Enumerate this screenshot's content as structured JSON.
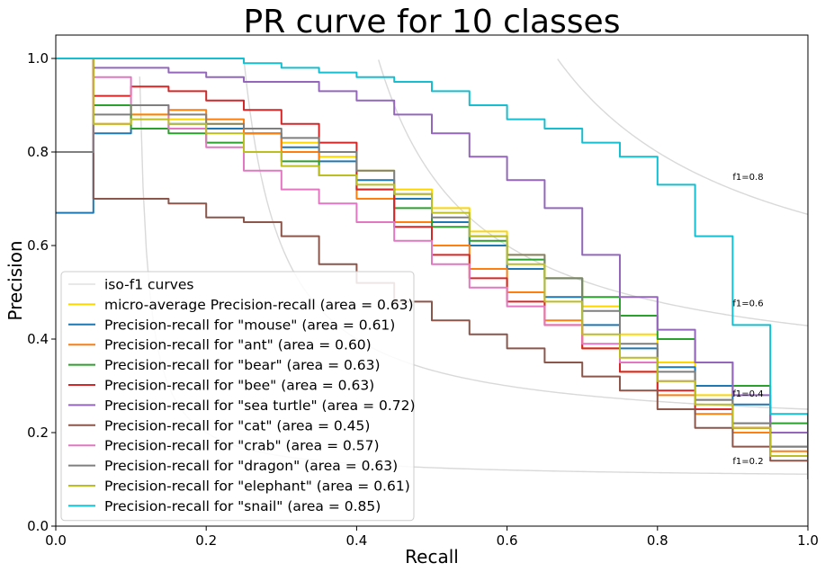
{
  "chart_data": {
    "type": "line",
    "title": "PR curve for 10 classes",
    "xlabel": "Recall",
    "ylabel": "Precision",
    "xlim": [
      0.0,
      1.0
    ],
    "ylim": [
      0.0,
      1.05
    ],
    "xticks": [
      "0.0",
      "0.2",
      "0.4",
      "0.6",
      "0.8",
      "1.0"
    ],
    "yticks": [
      "0.0",
      "0.2",
      "0.4",
      "0.6",
      "0.8",
      "1.0"
    ],
    "grid": false,
    "legend_position": "lower-left",
    "iso_f1": {
      "legend_label": "iso-f1 curves",
      "color": "#d9d9d9",
      "values": [
        0.2,
        0.4,
        0.6,
        0.8
      ],
      "labels": [
        "f1=0.2",
        "f1=0.4",
        "f1=0.6",
        "f1=0.8"
      ]
    },
    "series": [
      {
        "name": "micro-average Precision-recall (area = 0.63)",
        "color": "#ffd700",
        "x": [
          0.0,
          0.05,
          0.1,
          0.15,
          0.2,
          0.25,
          0.3,
          0.35,
          0.4,
          0.45,
          0.5,
          0.55,
          0.6,
          0.65,
          0.7,
          0.75,
          0.8,
          0.85,
          0.9,
          0.95,
          1.0
        ],
        "y": [
          1.0,
          0.9,
          0.88,
          0.87,
          0.86,
          0.84,
          0.82,
          0.79,
          0.76,
          0.72,
          0.68,
          0.63,
          0.58,
          0.53,
          0.47,
          0.41,
          0.35,
          0.28,
          0.21,
          0.15,
          0.1
        ]
      },
      {
        "name": "Precision-recall for \"mouse\" (area = 0.61)",
        "color": "#1f77b4",
        "x": [
          0.0,
          0.05,
          0.1,
          0.15,
          0.2,
          0.25,
          0.3,
          0.35,
          0.4,
          0.45,
          0.5,
          0.55,
          0.6,
          0.65,
          0.7,
          0.75,
          0.8,
          0.85,
          0.9,
          0.95,
          1.0
        ],
        "y": [
          0.67,
          0.84,
          0.85,
          0.86,
          0.85,
          0.84,
          0.81,
          0.78,
          0.74,
          0.7,
          0.65,
          0.6,
          0.55,
          0.49,
          0.43,
          0.38,
          0.34,
          0.3,
          0.26,
          0.2,
          0.1
        ]
      },
      {
        "name": "Precision-recall for \"ant\" (area = 0.60)",
        "color": "#ff7f0e",
        "x": [
          0.0,
          0.05,
          0.1,
          0.15,
          0.2,
          0.25,
          0.3,
          0.35,
          0.4,
          0.45,
          0.5,
          0.55,
          0.6,
          0.65,
          0.7,
          0.75,
          0.8,
          0.85,
          0.9,
          0.95,
          1.0
        ],
        "y": [
          1.0,
          0.86,
          0.88,
          0.89,
          0.87,
          0.84,
          0.8,
          0.75,
          0.7,
          0.65,
          0.6,
          0.55,
          0.5,
          0.44,
          0.38,
          0.33,
          0.28,
          0.24,
          0.2,
          0.16,
          0.1
        ]
      },
      {
        "name": "Precision-recall for \"bear\" (area = 0.63)",
        "color": "#2ca02c",
        "x": [
          0.0,
          0.05,
          0.1,
          0.15,
          0.2,
          0.25,
          0.3,
          0.35,
          0.4,
          0.45,
          0.5,
          0.55,
          0.6,
          0.65,
          0.7,
          0.75,
          0.8,
          0.85,
          0.9,
          0.95,
          1.0
        ],
        "y": [
          0.8,
          0.9,
          0.85,
          0.84,
          0.82,
          0.8,
          0.78,
          0.75,
          0.72,
          0.68,
          0.64,
          0.61,
          0.57,
          0.53,
          0.49,
          0.45,
          0.4,
          0.35,
          0.3,
          0.22,
          0.1
        ]
      },
      {
        "name": "Precision-recall for \"bee\" (area = 0.63)",
        "color": "#d62728",
        "x": [
          0.0,
          0.05,
          0.1,
          0.15,
          0.2,
          0.25,
          0.3,
          0.35,
          0.4,
          0.45,
          0.5,
          0.55,
          0.6,
          0.65,
          0.7,
          0.75,
          0.8,
          0.85,
          0.9,
          0.95,
          1.0
        ],
        "y": [
          1.0,
          0.92,
          0.94,
          0.93,
          0.91,
          0.89,
          0.86,
          0.82,
          0.72,
          0.64,
          0.58,
          0.53,
          0.48,
          0.43,
          0.38,
          0.33,
          0.29,
          0.25,
          0.21,
          0.17,
          0.1
        ]
      },
      {
        "name": "Precision-recall for \"sea turtle\" (area = 0.72)",
        "color": "#9467bd",
        "x": [
          0.0,
          0.05,
          0.1,
          0.15,
          0.2,
          0.25,
          0.3,
          0.35,
          0.4,
          0.45,
          0.5,
          0.55,
          0.6,
          0.65,
          0.7,
          0.75,
          0.8,
          0.85,
          0.9,
          0.95,
          1.0
        ],
        "y": [
          1.0,
          0.98,
          0.98,
          0.97,
          0.96,
          0.95,
          0.95,
          0.93,
          0.91,
          0.88,
          0.84,
          0.79,
          0.74,
          0.68,
          0.58,
          0.49,
          0.42,
          0.35,
          0.28,
          0.2,
          0.1
        ]
      },
      {
        "name": "Precision-recall for \"cat\" (area = 0.45)",
        "color": "#8c564b",
        "x": [
          0.0,
          0.05,
          0.1,
          0.15,
          0.2,
          0.25,
          0.3,
          0.35,
          0.4,
          0.45,
          0.5,
          0.55,
          0.6,
          0.65,
          0.7,
          0.75,
          0.8,
          0.85,
          0.9,
          0.95,
          1.0
        ],
        "y": [
          1.0,
          0.7,
          0.7,
          0.69,
          0.66,
          0.65,
          0.62,
          0.56,
          0.52,
          0.48,
          0.44,
          0.41,
          0.38,
          0.35,
          0.32,
          0.29,
          0.25,
          0.21,
          0.17,
          0.14,
          0.1
        ]
      },
      {
        "name": "Precision-recall for \"crab\" (area = 0.57)",
        "color": "#e377c2",
        "x": [
          0.0,
          0.05,
          0.1,
          0.15,
          0.2,
          0.25,
          0.3,
          0.35,
          0.4,
          0.45,
          0.5,
          0.55,
          0.6,
          0.65,
          0.7,
          0.75,
          0.8,
          0.85,
          0.9,
          0.95,
          1.0
        ],
        "y": [
          0.8,
          0.96,
          0.9,
          0.85,
          0.81,
          0.76,
          0.72,
          0.69,
          0.65,
          0.61,
          0.56,
          0.51,
          0.47,
          0.43,
          0.39,
          0.35,
          0.31,
          0.27,
          0.22,
          0.17,
          0.1
        ]
      },
      {
        "name": "Precision-recall for \"dragon\" (area = 0.63)",
        "color": "#7f7f7f",
        "x": [
          0.0,
          0.05,
          0.1,
          0.15,
          0.2,
          0.25,
          0.3,
          0.35,
          0.4,
          0.45,
          0.5,
          0.55,
          0.6,
          0.65,
          0.7,
          0.75,
          0.8,
          0.85,
          0.9,
          0.95,
          1.0
        ],
        "y": [
          0.8,
          0.88,
          0.9,
          0.88,
          0.86,
          0.85,
          0.83,
          0.8,
          0.76,
          0.71,
          0.66,
          0.62,
          0.58,
          0.53,
          0.46,
          0.39,
          0.33,
          0.27,
          0.22,
          0.17,
          0.1
        ]
      },
      {
        "name": "Precision-recall for \"elephant\" (area = 0.61)",
        "color": "#bcbd22",
        "x": [
          0.0,
          0.05,
          0.1,
          0.15,
          0.2,
          0.25,
          0.3,
          0.35,
          0.4,
          0.45,
          0.5,
          0.55,
          0.6,
          0.65,
          0.7,
          0.75,
          0.8,
          0.85,
          0.9,
          0.95,
          1.0
        ],
        "y": [
          1.0,
          0.86,
          0.87,
          0.86,
          0.84,
          0.8,
          0.77,
          0.75,
          0.73,
          0.71,
          0.67,
          0.62,
          0.56,
          0.48,
          0.41,
          0.36,
          0.31,
          0.26,
          0.21,
          0.15,
          0.1
        ]
      },
      {
        "name": "Precision-recall for \"snail\" (area = 0.85)",
        "color": "#17becf",
        "x": [
          0.0,
          0.05,
          0.1,
          0.15,
          0.2,
          0.25,
          0.3,
          0.35,
          0.4,
          0.45,
          0.5,
          0.55,
          0.6,
          0.65,
          0.7,
          0.75,
          0.8,
          0.85,
          0.9,
          0.95,
          1.0
        ],
        "y": [
          1.0,
          1.0,
          1.0,
          1.0,
          1.0,
          0.99,
          0.98,
          0.97,
          0.96,
          0.95,
          0.93,
          0.9,
          0.87,
          0.85,
          0.82,
          0.79,
          0.73,
          0.62,
          0.43,
          0.24,
          0.12
        ]
      }
    ]
  }
}
